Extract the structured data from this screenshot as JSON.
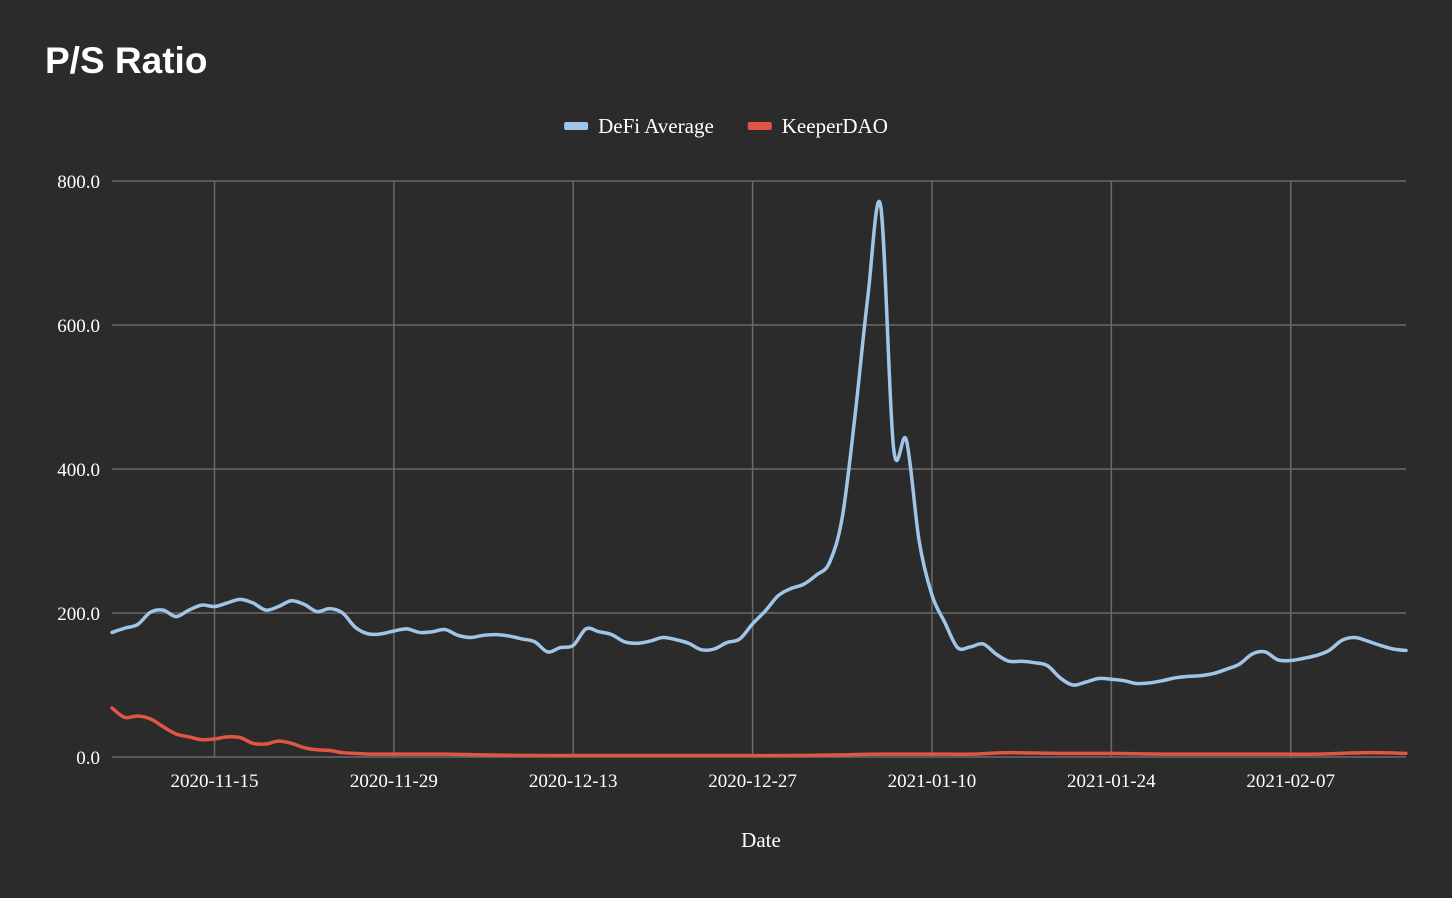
{
  "chart_data": {
    "type": "line",
    "title": "P/S Ratio",
    "xlabel": "Date",
    "ylabel": "",
    "ylim": [
      0,
      800
    ],
    "y_ticks": [
      "0.0",
      "200.0",
      "400.0",
      "600.0",
      "800.0"
    ],
    "x_tick_labels": [
      "2020-11-15",
      "2020-11-29",
      "2020-12-13",
      "2020-12-27",
      "2021-01-10",
      "2021-01-24",
      "2021-02-07"
    ],
    "x_range": [
      "2020-11-07",
      "2021-02-16"
    ],
    "grid": true,
    "legend_position": "top-center",
    "series": [
      {
        "name": "DeFi Average",
        "color": "#9fc5e8",
        "points": [
          [
            "2020-11-07",
            173
          ],
          [
            "2020-11-08",
            179
          ],
          [
            "2020-11-09",
            184
          ],
          [
            "2020-11-10",
            201
          ],
          [
            "2020-11-11",
            204
          ],
          [
            "2020-11-12",
            195
          ],
          [
            "2020-11-13",
            204
          ],
          [
            "2020-11-14",
            211
          ],
          [
            "2020-11-15",
            209
          ],
          [
            "2020-11-16",
            214
          ],
          [
            "2020-11-17",
            219
          ],
          [
            "2020-11-18",
            214
          ],
          [
            "2020-11-19",
            204
          ],
          [
            "2020-11-20",
            209
          ],
          [
            "2020-11-21",
            217
          ],
          [
            "2020-11-22",
            212
          ],
          [
            "2020-11-23",
            202
          ],
          [
            "2020-11-24",
            206
          ],
          [
            "2020-11-25",
            200
          ],
          [
            "2020-11-26",
            180
          ],
          [
            "2020-11-27",
            171
          ],
          [
            "2020-11-28",
            171
          ],
          [
            "2020-11-29",
            175
          ],
          [
            "2020-11-30",
            178
          ],
          [
            "2020-12-01",
            173
          ],
          [
            "2020-12-02",
            174
          ],
          [
            "2020-12-03",
            177
          ],
          [
            "2020-12-04",
            169
          ],
          [
            "2020-12-05",
            166
          ],
          [
            "2020-12-06",
            169
          ],
          [
            "2020-12-07",
            170
          ],
          [
            "2020-12-08",
            168
          ],
          [
            "2020-12-09",
            164
          ],
          [
            "2020-12-10",
            160
          ],
          [
            "2020-12-11",
            146
          ],
          [
            "2020-12-12",
            152
          ],
          [
            "2020-12-13",
            155
          ],
          [
            "2020-12-14",
            178
          ],
          [
            "2020-12-15",
            174
          ],
          [
            "2020-12-16",
            170
          ],
          [
            "2020-12-17",
            160
          ],
          [
            "2020-12-18",
            158
          ],
          [
            "2020-12-19",
            161
          ],
          [
            "2020-12-20",
            166
          ],
          [
            "2020-12-21",
            163
          ],
          [
            "2020-12-22",
            158
          ],
          [
            "2020-12-23",
            149
          ],
          [
            "2020-12-24",
            150
          ],
          [
            "2020-12-25",
            159
          ],
          [
            "2020-12-26",
            164
          ],
          [
            "2020-12-27",
            185
          ],
          [
            "2020-12-28",
            203
          ],
          [
            "2020-12-29",
            224
          ],
          [
            "2020-12-30",
            234
          ],
          [
            "2020-12-31",
            240
          ],
          [
            "2021-01-01",
            253
          ],
          [
            "2021-01-02",
            270
          ],
          [
            "2021-01-03",
            333
          ],
          [
            "2021-01-04",
            475
          ],
          [
            "2021-01-05",
            640
          ],
          [
            "2021-01-06",
            765
          ],
          [
            "2021-01-07",
            430
          ],
          [
            "2021-01-08",
            440
          ],
          [
            "2021-01-09",
            300
          ],
          [
            "2021-01-10",
            225
          ],
          [
            "2021-01-11",
            187
          ],
          [
            "2021-01-12",
            152
          ],
          [
            "2021-01-13",
            153
          ],
          [
            "2021-01-14",
            157
          ],
          [
            "2021-01-15",
            143
          ],
          [
            "2021-01-16",
            133
          ],
          [
            "2021-01-17",
            133
          ],
          [
            "2021-01-18",
            131
          ],
          [
            "2021-01-19",
            127
          ],
          [
            "2021-01-20",
            110
          ],
          [
            "2021-01-21",
            100
          ],
          [
            "2021-01-22",
            104
          ],
          [
            "2021-01-23",
            109
          ],
          [
            "2021-01-24",
            108
          ],
          [
            "2021-01-25",
            106
          ],
          [
            "2021-01-26",
            102
          ],
          [
            "2021-01-27",
            103
          ],
          [
            "2021-01-28",
            106
          ],
          [
            "2021-01-29",
            110
          ],
          [
            "2021-01-30",
            112
          ],
          [
            "2021-01-31",
            113
          ],
          [
            "2021-02-01",
            116
          ],
          [
            "2021-02-02",
            122
          ],
          [
            "2021-02-03",
            129
          ],
          [
            "2021-02-04",
            143
          ],
          [
            "2021-02-05",
            146
          ],
          [
            "2021-02-06",
            135
          ],
          [
            "2021-02-07",
            134
          ],
          [
            "2021-02-08",
            137
          ],
          [
            "2021-02-09",
            141
          ],
          [
            "2021-02-10",
            148
          ],
          [
            "2021-02-11",
            162
          ],
          [
            "2021-02-12",
            166
          ],
          [
            "2021-02-13",
            161
          ],
          [
            "2021-02-14",
            155
          ],
          [
            "2021-02-15",
            150
          ],
          [
            "2021-02-16",
            148
          ]
        ]
      },
      {
        "name": "KeeperDAO",
        "color": "#e05543",
        "points": [
          [
            "2020-11-07",
            68
          ],
          [
            "2020-11-08",
            55
          ],
          [
            "2020-11-09",
            57
          ],
          [
            "2020-11-10",
            53
          ],
          [
            "2020-11-11",
            42
          ],
          [
            "2020-11-12",
            32
          ],
          [
            "2020-11-13",
            28
          ],
          [
            "2020-11-14",
            24
          ],
          [
            "2020-11-15",
            25
          ],
          [
            "2020-11-16",
            28
          ],
          [
            "2020-11-17",
            27
          ],
          [
            "2020-11-18",
            19
          ],
          [
            "2020-11-19",
            18
          ],
          [
            "2020-11-20",
            22
          ],
          [
            "2020-11-21",
            19
          ],
          [
            "2020-11-22",
            13
          ],
          [
            "2020-11-23",
            10
          ],
          [
            "2020-11-24",
            9
          ],
          [
            "2020-11-25",
            6
          ],
          [
            "2020-11-26",
            5
          ],
          [
            "2020-11-27",
            4
          ],
          [
            "2020-11-28",
            4
          ],
          [
            "2020-11-29",
            4
          ],
          [
            "2020-11-30",
            4
          ],
          [
            "2020-12-01",
            4
          ],
          [
            "2020-12-03",
            4
          ],
          [
            "2020-12-06",
            3
          ],
          [
            "2020-12-10",
            2
          ],
          [
            "2020-12-14",
            2
          ],
          [
            "2020-12-18",
            2
          ],
          [
            "2020-12-22",
            2
          ],
          [
            "2020-12-26",
            2
          ],
          [
            "2020-12-30",
            2
          ],
          [
            "2021-01-03",
            3
          ],
          [
            "2021-01-06",
            4
          ],
          [
            "2021-01-10",
            4
          ],
          [
            "2021-01-13",
            4
          ],
          [
            "2021-01-16",
            6
          ],
          [
            "2021-01-20",
            5
          ],
          [
            "2021-01-24",
            5
          ],
          [
            "2021-01-28",
            4
          ],
          [
            "2021-02-01",
            4
          ],
          [
            "2021-02-05",
            4
          ],
          [
            "2021-02-09",
            4
          ],
          [
            "2021-02-13",
            6
          ],
          [
            "2021-02-16",
            5
          ]
        ]
      }
    ]
  }
}
